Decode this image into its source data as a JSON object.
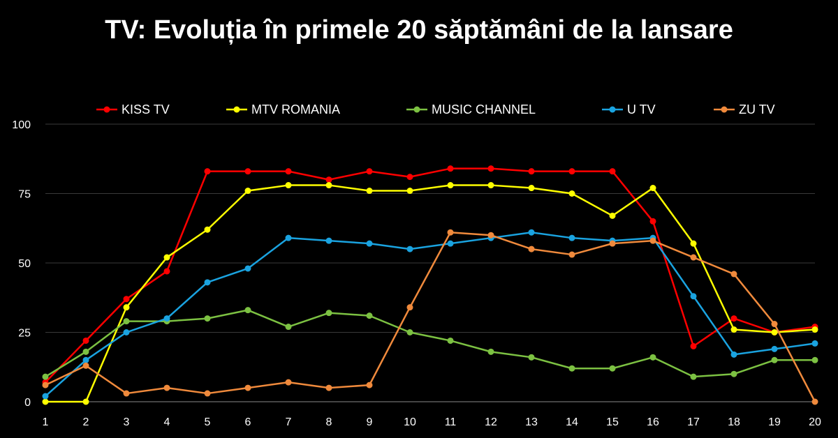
{
  "chart_data": {
    "type": "line",
    "title": "TV: Evoluția în primele 20 săptămâni de la lansare",
    "xlabel": "",
    "ylabel": "",
    "x": [
      1,
      2,
      3,
      4,
      5,
      6,
      7,
      8,
      9,
      10,
      11,
      12,
      13,
      14,
      15,
      16,
      17,
      18,
      19,
      20
    ],
    "ylim": [
      0,
      100
    ],
    "yticks": [
      0,
      25,
      50,
      75,
      100
    ],
    "grid": true,
    "legend_position": "top",
    "series": [
      {
        "name": "KISS TV",
        "color": "#ff0000",
        "values": [
          7,
          22,
          37,
          47,
          83,
          83,
          83,
          80,
          83,
          81,
          84,
          84,
          83,
          83,
          83,
          65,
          20,
          30,
          25,
          27
        ]
      },
      {
        "name": "MTV ROMANIA",
        "color": "#ffff00",
        "values": [
          0,
          0,
          34,
          52,
          62,
          76,
          78,
          78,
          76,
          76,
          78,
          78,
          77,
          75,
          67,
          77,
          57,
          26,
          25,
          26
        ]
      },
      {
        "name": "MUSIC CHANNEL",
        "color": "#7cc142",
        "values": [
          9,
          18,
          29,
          29,
          30,
          33,
          27,
          32,
          31,
          25,
          22,
          18,
          16,
          12,
          12,
          16,
          9,
          10,
          15,
          15
        ]
      },
      {
        "name": "U TV",
        "color": "#1aa3e0",
        "values": [
          2,
          15,
          25,
          30,
          43,
          48,
          59,
          58,
          57,
          55,
          57,
          59,
          61,
          59,
          58,
          59,
          38,
          17,
          19,
          21
        ]
      },
      {
        "name": "ZU TV",
        "color": "#f08a3c",
        "values": [
          6,
          13,
          3,
          5,
          3,
          5,
          7,
          5,
          6,
          34,
          61,
          60,
          55,
          53,
          57,
          58,
          52,
          46,
          28,
          0
        ]
      }
    ]
  }
}
